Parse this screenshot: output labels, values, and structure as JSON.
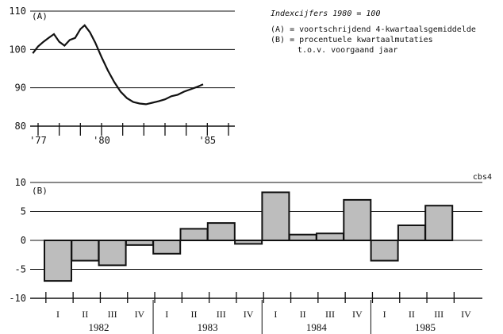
{
  "legend": {
    "title": "Indexcijfers 1980 = 100",
    "line_a": "(A)  = voortschrijdend 4-kwartaalsgemiddelde",
    "line_b1": "(B)  = procentuele kwartaalmutaties",
    "line_b2": "t.o.v. voorgaand jaar"
  },
  "source_tag": "cbs4",
  "chart_data": [
    {
      "type": "line",
      "panel_label": "(A)",
      "ylim": [
        80,
        110
      ],
      "yticks": [
        80,
        90,
        100,
        110
      ],
      "xlim": [
        1976.75,
        1986.5
      ],
      "xticks": [
        1977,
        1978,
        1979,
        1980,
        1981,
        1982,
        1983,
        1984,
        1985,
        1986
      ],
      "xtick_labels": [
        {
          "x": 1977,
          "label": "'77"
        },
        {
          "x": 1980,
          "label": "'80"
        },
        {
          "x": 1985,
          "label": "'85"
        }
      ],
      "grid": true,
      "series": [
        {
          "x": [
            1976.75,
            1977.0,
            1977.25,
            1977.5,
            1977.75,
            1978.0,
            1978.25,
            1978.5,
            1978.75,
            1979.0,
            1979.2,
            1979.45,
            1979.7,
            1980.0,
            1980.3,
            1980.6,
            1980.9,
            1981.2,
            1981.5,
            1981.8,
            1982.1,
            1982.4,
            1982.7,
            1983.0,
            1983.3,
            1983.6,
            1983.9,
            1984.2,
            1984.5,
            1984.8
          ],
          "y": [
            99.0,
            100.8,
            102.0,
            103.0,
            104.0,
            102.0,
            101.0,
            102.5,
            103.0,
            105.3,
            106.3,
            104.5,
            101.8,
            98.0,
            94.5,
            91.5,
            89.0,
            87.3,
            86.3,
            85.9,
            85.7,
            86.1,
            86.5,
            87.0,
            87.8,
            88.2,
            89.0,
            89.6,
            90.2,
            90.9
          ]
        }
      ]
    },
    {
      "type": "bar",
      "panel_label": "(B)",
      "ylim": [
        -10,
        10
      ],
      "yticks": [
        -10,
        -5,
        0,
        5,
        10
      ],
      "grid": true,
      "categories": [
        "I",
        "II",
        "III",
        "IV",
        "I",
        "II",
        "III",
        "IV",
        "I",
        "II",
        "III",
        "IV",
        "I",
        "II",
        "III",
        "IV"
      ],
      "groups": [
        "1982",
        "1983",
        "1984",
        "1985"
      ],
      "values": [
        -7.0,
        -3.5,
        -4.3,
        -0.8,
        -2.3,
        2.0,
        3.0,
        -0.6,
        8.3,
        1.0,
        1.2,
        7.0,
        -3.5,
        2.6,
        6.0,
        0
      ]
    }
  ]
}
